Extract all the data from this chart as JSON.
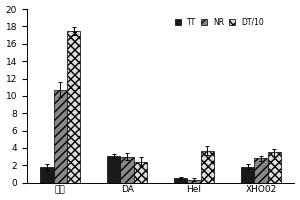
{
  "categories": [
    "空白",
    "DA",
    "Hel",
    "XHO02"
  ],
  "series": {
    "TT": [
      1.8,
      3.1,
      0.55,
      1.85
    ],
    "NR": [
      10.7,
      3.0,
      0.35,
      2.8
    ],
    "DT/10": [
      17.5,
      2.4,
      3.7,
      3.5
    ]
  },
  "errors": {
    "TT": [
      0.35,
      0.25,
      0.12,
      0.3
    ],
    "NR": [
      0.85,
      0.4,
      0.2,
      0.32
    ],
    "DT/10": [
      0.45,
      0.5,
      0.55,
      0.42
    ]
  },
  "ylim": [
    0,
    20
  ],
  "yticks": [
    0,
    2,
    4,
    6,
    8,
    10,
    12,
    14,
    16,
    18,
    20
  ],
  "bar_width": 0.2,
  "legend_labels": [
    "TT",
    "NR",
    "DT/10"
  ],
  "background_color": "#ffffff",
  "title": ""
}
